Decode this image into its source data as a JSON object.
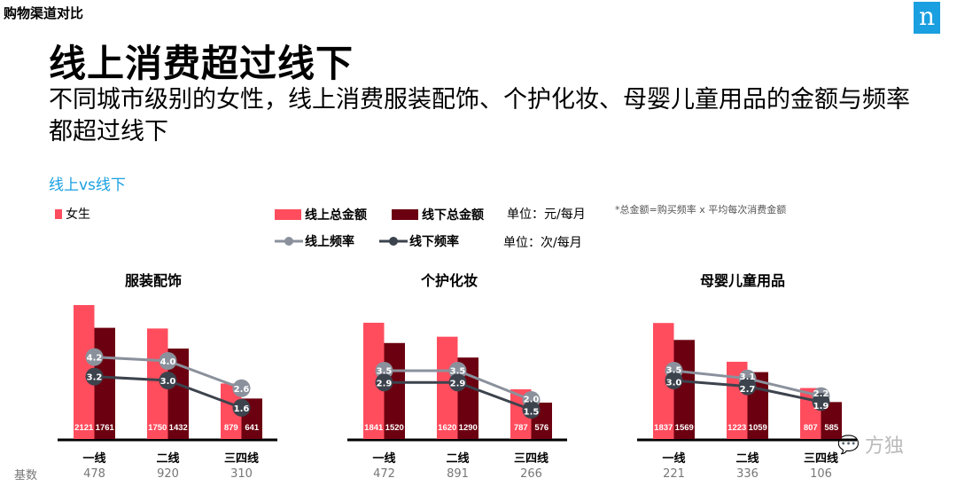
{
  "section": "购物渠道对比",
  "logo": "n",
  "title": "线上消费超过线下",
  "subtitle": "不同城市级别的女性，线上消费服装配饰、个护化妆、母婴儿童用品的金额与频率都超过线下",
  "vs_label": "线上vs线下",
  "gender_legend": "女生",
  "legend": {
    "online_amount": "线上总金额",
    "offline_amount": "线下总金额",
    "amount_unit": "单位：元/每月",
    "online_freq": "线上频率",
    "offline_freq": "线下频率",
    "freq_unit": "单位：次/每月",
    "note": "*总金额=购买频率 x 平均每次消费金额"
  },
  "base_label": "基数",
  "watermark": "方独",
  "colors": {
    "online_bar": "#ff4d5e",
    "offline_bar": "#6b0010",
    "online_line": "#8a919c",
    "offline_line": "#3c434d",
    "accent": "#1aa0e0"
  },
  "chart_data": [
    {
      "type": "bar+line",
      "title": "服装配饰",
      "categories": [
        "一线",
        "二线",
        "三四线"
      ],
      "series": [
        {
          "name": "线上总金额",
          "values": [
            2121,
            1750,
            879
          ]
        },
        {
          "name": "线下总金额",
          "values": [
            1761,
            1432,
            641
          ]
        },
        {
          "name": "线上频率",
          "values": [
            4.2,
            4.0,
            2.6
          ]
        },
        {
          "name": "线下频率",
          "values": [
            3.2,
            3.0,
            1.6
          ]
        }
      ],
      "base": [
        478,
        920,
        310
      ]
    },
    {
      "type": "bar+line",
      "title": "个护化妆",
      "categories": [
        "一线",
        "二线",
        "三四线"
      ],
      "series": [
        {
          "name": "线上总金额",
          "values": [
            1841,
            1620,
            787
          ]
        },
        {
          "name": "线下总金额",
          "values": [
            1520,
            1290,
            576
          ]
        },
        {
          "name": "线上频率",
          "values": [
            3.5,
            3.5,
            2.0
          ]
        },
        {
          "name": "线下频率",
          "values": [
            2.9,
            2.9,
            1.5
          ]
        }
      ],
      "base": [
        472,
        891,
        266
      ]
    },
    {
      "type": "bar+line",
      "title": "母婴儿童用品",
      "categories": [
        "一线",
        "二线",
        "三四线"
      ],
      "series": [
        {
          "name": "线上总金额",
          "values": [
            1837,
            1223,
            807
          ]
        },
        {
          "name": "线下总金额",
          "values": [
            1569,
            1059,
            585
          ]
        },
        {
          "name": "线上频率",
          "values": [
            3.5,
            3.1,
            2.2
          ]
        },
        {
          "name": "线下频率",
          "values": [
            3.0,
            2.7,
            1.9
          ]
        }
      ],
      "base": [
        221,
        336,
        106
      ]
    }
  ]
}
